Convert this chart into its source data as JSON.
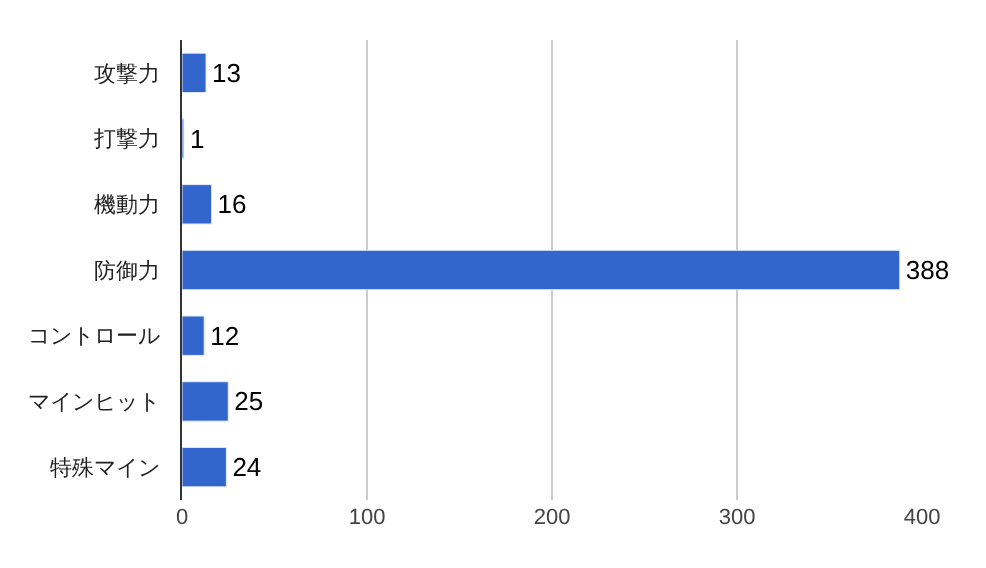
{
  "chart_data": {
    "type": "bar",
    "orientation": "horizontal",
    "categories": [
      "攻撃力",
      "打撃力",
      "機動力",
      "防御力",
      "コントロール",
      "マインヒット",
      "特殊マイン"
    ],
    "values": [
      13,
      1,
      16,
      388,
      12,
      25,
      24
    ],
    "color": "#3366cc",
    "xlim": [
      0,
      400
    ],
    "xticks": [
      0,
      100,
      200,
      300,
      400
    ],
    "grid": "x",
    "data_labels": true,
    "legend": false
  }
}
